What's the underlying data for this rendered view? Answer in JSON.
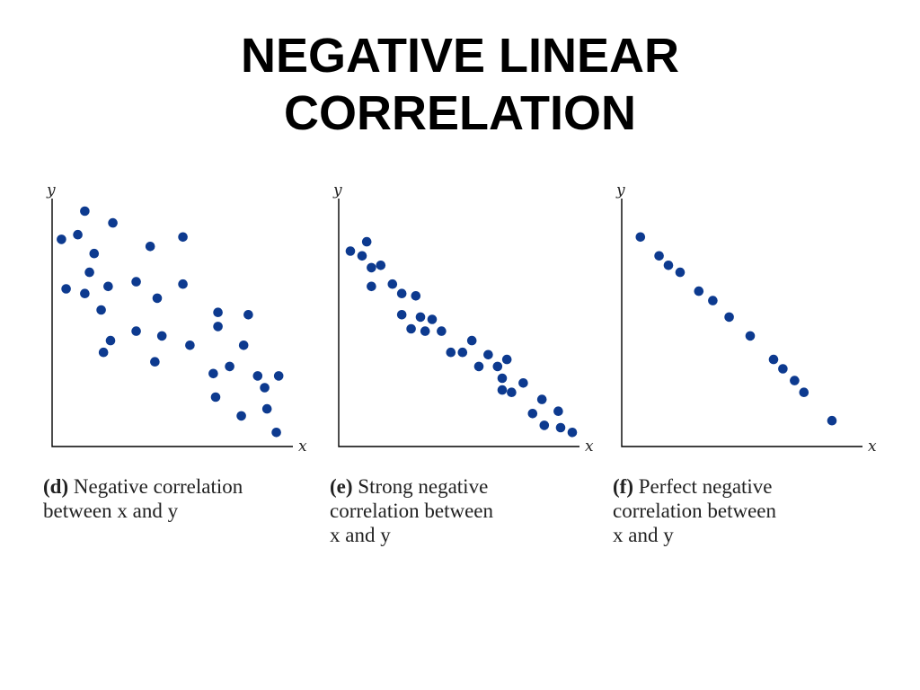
{
  "title": {
    "line1": "NEGATIVE LINEAR",
    "line2": "CORRELATION"
  },
  "colors": {
    "point": "#0d3a8f",
    "axis": "#000000"
  },
  "chart_data": [
    {
      "type": "scatter",
      "id": "d",
      "xlabel": "x",
      "ylabel": "y",
      "xlim": [
        0,
        10
      ],
      "ylim": [
        0,
        10
      ],
      "grid": false,
      "caption": {
        "tag": "(d)",
        "lines": [
          "Negative correlation",
          "between x and y"
        ]
      },
      "points": [
        {
          "x": 0.4,
          "y": 8.8
        },
        {
          "x": 0.6,
          "y": 6.7
        },
        {
          "x": 1.1,
          "y": 9.0
        },
        {
          "x": 1.4,
          "y": 10.0
        },
        {
          "x": 1.4,
          "y": 6.5
        },
        {
          "x": 1.6,
          "y": 7.4
        },
        {
          "x": 1.8,
          "y": 8.2
        },
        {
          "x": 2.1,
          "y": 5.8
        },
        {
          "x": 2.2,
          "y": 4.0
        },
        {
          "x": 2.4,
          "y": 6.8
        },
        {
          "x": 2.5,
          "y": 4.5
        },
        {
          "x": 2.6,
          "y": 9.5
        },
        {
          "x": 3.6,
          "y": 7.0
        },
        {
          "x": 3.6,
          "y": 4.9
        },
        {
          "x": 4.2,
          "y": 8.5
        },
        {
          "x": 4.4,
          "y": 3.6
        },
        {
          "x": 4.5,
          "y": 6.3
        },
        {
          "x": 4.7,
          "y": 4.7
        },
        {
          "x": 5.6,
          "y": 8.9
        },
        {
          "x": 5.6,
          "y": 6.9
        },
        {
          "x": 5.9,
          "y": 4.3
        },
        {
          "x": 6.9,
          "y": 3.1
        },
        {
          "x": 7.0,
          "y": 2.1
        },
        {
          "x": 7.1,
          "y": 5.7
        },
        {
          "x": 7.1,
          "y": 5.1
        },
        {
          "x": 7.6,
          "y": 3.4
        },
        {
          "x": 8.1,
          "y": 1.3
        },
        {
          "x": 8.2,
          "y": 4.3
        },
        {
          "x": 8.4,
          "y": 5.6
        },
        {
          "x": 8.8,
          "y": 3.0
        },
        {
          "x": 9.1,
          "y": 2.5
        },
        {
          "x": 9.2,
          "y": 1.6
        },
        {
          "x": 9.6,
          "y": 0.6
        },
        {
          "x": 9.7,
          "y": 3.0
        }
      ]
    },
    {
      "type": "scatter",
      "id": "e",
      "xlabel": "x",
      "ylabel": "y",
      "xlim": [
        0,
        10
      ],
      "ylim": [
        0,
        10
      ],
      "grid": false,
      "caption": {
        "tag": "(e)",
        "lines": [
          "Strong negative",
          "correlation between",
          "x and y"
        ]
      },
      "points": [
        {
          "x": 0.5,
          "y": 8.3
        },
        {
          "x": 1.0,
          "y": 8.1
        },
        {
          "x": 1.2,
          "y": 8.7
        },
        {
          "x": 1.4,
          "y": 7.6
        },
        {
          "x": 1.4,
          "y": 6.8
        },
        {
          "x": 1.8,
          "y": 7.7
        },
        {
          "x": 2.3,
          "y": 6.9
        },
        {
          "x": 2.7,
          "y": 6.5
        },
        {
          "x": 2.7,
          "y": 5.6
        },
        {
          "x": 3.1,
          "y": 5.0
        },
        {
          "x": 3.3,
          "y": 6.4
        },
        {
          "x": 3.5,
          "y": 5.5
        },
        {
          "x": 3.7,
          "y": 4.9
        },
        {
          "x": 4.0,
          "y": 5.4
        },
        {
          "x": 4.4,
          "y": 4.9
        },
        {
          "x": 4.8,
          "y": 4.0
        },
        {
          "x": 5.3,
          "y": 4.0
        },
        {
          "x": 5.7,
          "y": 4.5
        },
        {
          "x": 6.0,
          "y": 3.4
        },
        {
          "x": 6.4,
          "y": 3.9
        },
        {
          "x": 6.8,
          "y": 3.4
        },
        {
          "x": 7.0,
          "y": 2.9
        },
        {
          "x": 7.0,
          "y": 2.4
        },
        {
          "x": 7.2,
          "y": 3.7
        },
        {
          "x": 7.4,
          "y": 2.3
        },
        {
          "x": 7.9,
          "y": 2.7
        },
        {
          "x": 8.3,
          "y": 1.4
        },
        {
          "x": 8.7,
          "y": 2.0
        },
        {
          "x": 8.8,
          "y": 0.9
        },
        {
          "x": 9.4,
          "y": 1.5
        },
        {
          "x": 9.5,
          "y": 0.8
        },
        {
          "x": 10.0,
          "y": 0.6
        }
      ]
    },
    {
      "type": "scatter",
      "id": "f",
      "xlabel": "x",
      "ylabel": "y",
      "xlim": [
        0,
        10
      ],
      "ylim": [
        0,
        10
      ],
      "grid": false,
      "caption": {
        "tag": "(f)",
        "lines": [
          "Perfect negative",
          "correlation between",
          "x and y"
        ]
      },
      "points": [
        {
          "x": 0.8,
          "y": 8.9
        },
        {
          "x": 1.6,
          "y": 8.1
        },
        {
          "x": 2.0,
          "y": 7.7
        },
        {
          "x": 2.5,
          "y": 7.4
        },
        {
          "x": 3.3,
          "y": 6.6
        },
        {
          "x": 3.9,
          "y": 6.2
        },
        {
          "x": 4.6,
          "y": 5.5
        },
        {
          "x": 5.5,
          "y": 4.7
        },
        {
          "x": 6.5,
          "y": 3.7
        },
        {
          "x": 6.9,
          "y": 3.3
        },
        {
          "x": 7.4,
          "y": 2.8
        },
        {
          "x": 7.8,
          "y": 2.3
        },
        {
          "x": 9.0,
          "y": 1.1
        }
      ]
    }
  ]
}
